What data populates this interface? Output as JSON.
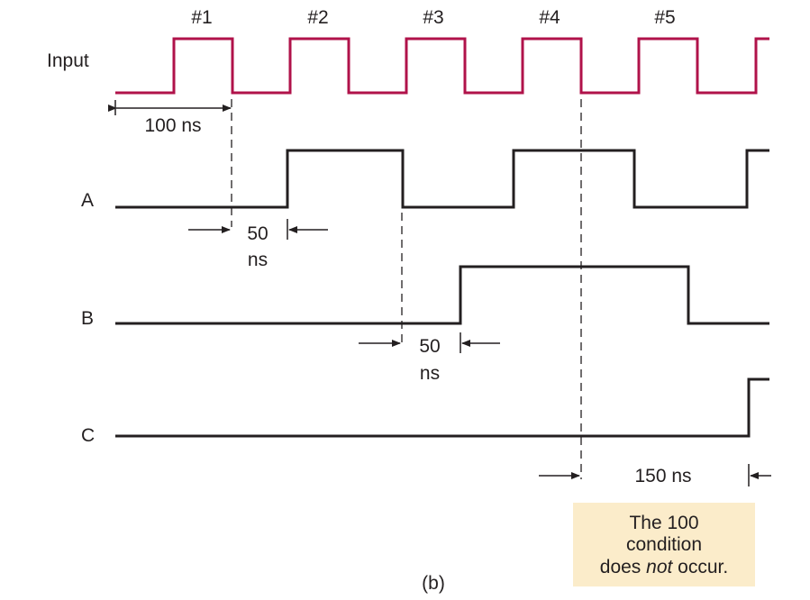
{
  "pulse_labels": [
    "#1",
    "#2",
    "#3",
    "#4",
    "#5"
  ],
  "signals": {
    "input": "Input",
    "a": "A",
    "b": "B",
    "c": "C"
  },
  "measurements": {
    "period": "100 ns",
    "delay_a_value": "50",
    "delay_a_unit": "ns",
    "delay_b_value": "50",
    "delay_b_unit": "ns",
    "delay_c": "150 ns"
  },
  "note": {
    "line1": "The 100",
    "line2": "condition",
    "line3_pre": "does ",
    "line3_em": "not",
    "line3_post": " occur."
  },
  "caption": "(b)",
  "colors": {
    "input_wave": "#b0124a",
    "wave": "#231f20",
    "note_bg": "#fbecca"
  }
}
